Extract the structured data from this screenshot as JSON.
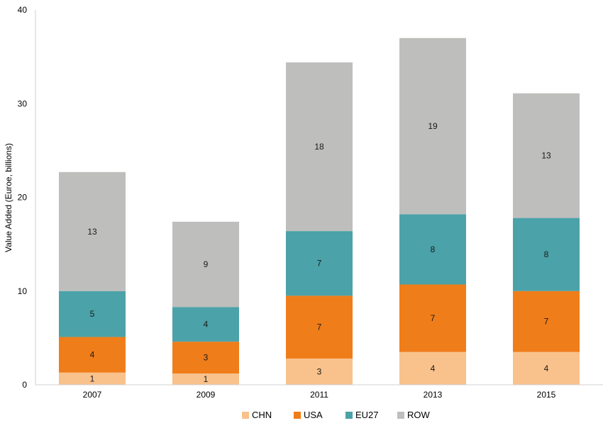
{
  "chart_data": {
    "type": "bar",
    "stacked": true,
    "categories": [
      "2007",
      "2009",
      "2011",
      "2013",
      "2015"
    ],
    "series": [
      {
        "name": "CHN",
        "color": "#f9c28c",
        "values": [
          1.3,
          1.2,
          2.8,
          3.5,
          3.5
        ],
        "labels": [
          "1",
          "1",
          "3",
          "4",
          "4"
        ]
      },
      {
        "name": "USA",
        "color": "#ef7d1a",
        "values": [
          3.8,
          3.4,
          6.7,
          7.2,
          6.5
        ],
        "labels": [
          "4",
          "3",
          "7",
          "7",
          "7"
        ]
      },
      {
        "name": "EU27",
        "color": "#4ba2a8",
        "values": [
          4.9,
          3.7,
          6.9,
          7.5,
          7.8
        ],
        "labels": [
          "5",
          "4",
          "7",
          "8",
          "8"
        ]
      },
      {
        "name": "ROW",
        "color": "#bebebc",
        "values": [
          12.7,
          9.1,
          18.0,
          18.8,
          13.3
        ],
        "labels": [
          "13",
          "9",
          "18",
          "19",
          "13"
        ]
      }
    ],
    "title": "",
    "xlabel": "",
    "ylabel": "Value Added (Euroe, billions)",
    "ylim": [
      0,
      40
    ],
    "yticks": [
      0,
      10,
      20,
      30,
      40
    ],
    "grid": false,
    "legend": "bottom-center"
  }
}
